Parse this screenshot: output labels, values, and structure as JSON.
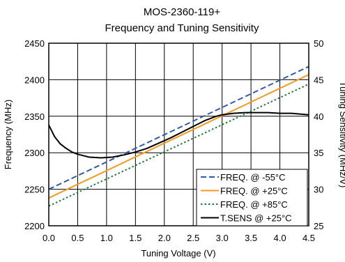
{
  "chart_data": {
    "type": "line",
    "title": "MOS-2360-119+",
    "subtitle": "Frequency and Tuning Sensitivity",
    "xlabel": "Tuning Voltage (V)",
    "ylabel": "Frequency (MHz)",
    "y2label": "Tuning Sensitivity (MHz/V)",
    "xlim": [
      0,
      4.5
    ],
    "ylim": [
      2200,
      2450
    ],
    "y2lim": [
      25,
      50
    ],
    "x_ticks": [
      "0.0",
      "0.5",
      "1.0",
      "1.5",
      "2.0",
      "2.5",
      "3.0",
      "3.5",
      "4.0",
      "4.5"
    ],
    "y_ticks": [
      "2200",
      "2250",
      "2300",
      "2350",
      "2400",
      "2450"
    ],
    "y2_ticks": [
      "25",
      "30",
      "35",
      "40",
      "45",
      "50"
    ],
    "grid": true,
    "legend_position": "bottom-right",
    "series": [
      {
        "name": "FREQ. @ -55°C",
        "axis": "left",
        "color": "#2f5aa8",
        "style": "dashed",
        "x": [
          0,
          4.5
        ],
        "y": [
          2250,
          2418
        ]
      },
      {
        "name": "FREQ. @ +25°C",
        "axis": "left",
        "color": "#f39a1e",
        "style": "solid",
        "x": [
          0,
          4.5
        ],
        "y": [
          2238,
          2407
        ]
      },
      {
        "name": "FREQ. @ +85°C",
        "axis": "left",
        "color": "#1f7a3a",
        "style": "dotted",
        "x": [
          0,
          4.5
        ],
        "y": [
          2227,
          2394
        ]
      },
      {
        "name": "T.SENS @ +25°C",
        "axis": "right",
        "color": "#000000",
        "style": "solid",
        "x": [
          0,
          0.1,
          0.2,
          0.3,
          0.4,
          0.5,
          0.7,
          0.9,
          1.1,
          1.3,
          1.5,
          1.7,
          1.9,
          2.1,
          2.3,
          2.5,
          2.7,
          2.9,
          3.0,
          3.2,
          3.4,
          3.6,
          3.8,
          4.0,
          4.2,
          4.5
        ],
        "y": [
          38.8,
          37.2,
          36.2,
          35.6,
          35.1,
          34.8,
          34.4,
          34.3,
          34.4,
          34.7,
          35.1,
          35.6,
          36.3,
          37.0,
          37.8,
          38.6,
          39.4,
          40.0,
          40.2,
          40.4,
          40.5,
          40.5,
          40.5,
          40.4,
          40.4,
          40.2
        ]
      }
    ]
  }
}
